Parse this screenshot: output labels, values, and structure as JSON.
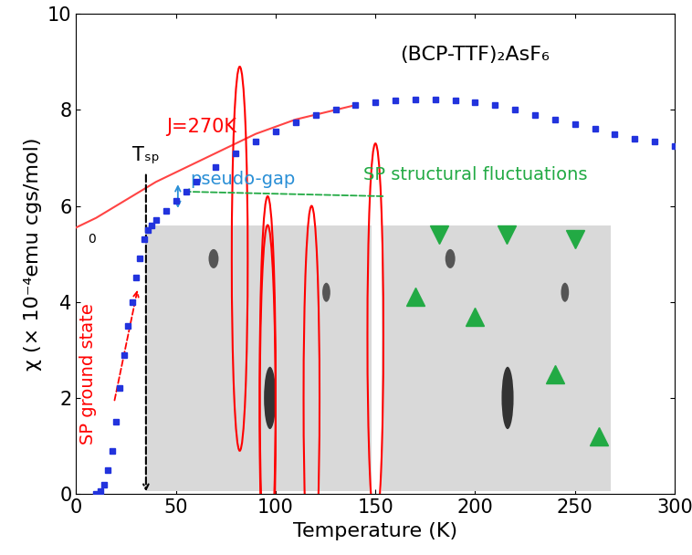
{
  "chart_data": {
    "type": "line",
    "title": "(BCP-TTF)₂AsF₆",
    "x_label": "Temperature (K)",
    "y_label": "χ (× 10⁻⁴emu cgs/mol)",
    "xlim": [
      0,
      300
    ],
    "xticks": [
      0,
      50,
      100,
      150,
      200,
      250,
      300
    ],
    "ylim": [
      0,
      10
    ],
    "yticks": [
      0,
      2,
      4,
      6,
      8,
      10
    ],
    "grid": false,
    "annotations": {
      "fit": "J=270K",
      "transition": "Tₛₚ",
      "pseudo_gap": "pseudo-gap",
      "fluctuations": "SP structural fluctuations",
      "ground_state": "SP ground state",
      "zero": "0"
    },
    "series": [
      {
        "type": "scatter",
        "color": "#2233dd",
        "marker": "square",
        "x": [
          10,
          12,
          14,
          16,
          18,
          20,
          22,
          24,
          26,
          28,
          30,
          32,
          34,
          36,
          38,
          40,
          45,
          50,
          55,
          60,
          70,
          80,
          90,
          100,
          110,
          120,
          130,
          140,
          150,
          160,
          170,
          180,
          190,
          200,
          210,
          220,
          230,
          240,
          250,
          260,
          270,
          280,
          290,
          300
        ],
        "values": [
          0,
          0.05,
          0.2,
          0.5,
          0.9,
          1.5,
          2.2,
          2.9,
          3.5,
          4.0,
          4.5,
          4.9,
          5.3,
          5.5,
          5.6,
          5.7,
          5.9,
          6.1,
          6.3,
          6.5,
          6.8,
          7.1,
          7.35,
          7.55,
          7.75,
          7.9,
          8.0,
          8.1,
          8.15,
          8.2,
          8.22,
          8.22,
          8.2,
          8.15,
          8.1,
          8.0,
          7.9,
          7.8,
          7.7,
          7.6,
          7.5,
          7.4,
          7.35,
          7.25
        ]
      },
      {
        "type": "line",
        "color": "#ff4444",
        "line_style": "solid",
        "x": [
          0,
          10,
          20,
          30,
          40,
          50,
          60,
          70,
          80,
          90,
          100,
          110,
          120,
          130,
          140
        ],
        "values": [
          5.55,
          5.75,
          6.0,
          6.25,
          6.5,
          6.7,
          6.9,
          7.1,
          7.3,
          7.5,
          7.65,
          7.8,
          7.9,
          8.0,
          8.1
        ]
      }
    ]
  }
}
